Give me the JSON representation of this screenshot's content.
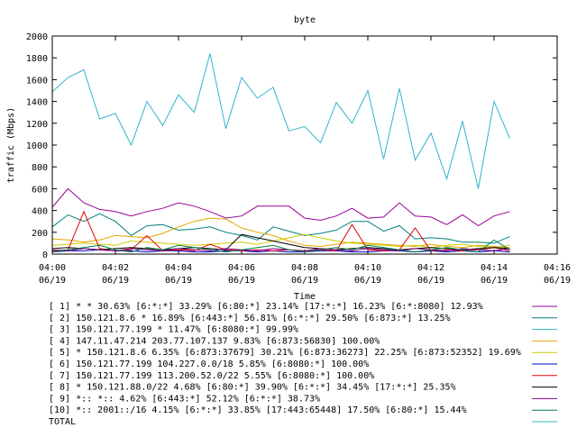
{
  "chart_data": {
    "type": "line",
    "title": "byte",
    "xlabel": "Time",
    "ylabel": "traffic (Mbps)",
    "ylim": [
      0,
      2000
    ],
    "yticks": [
      0,
      200,
      400,
      600,
      800,
      1000,
      1200,
      1400,
      1600,
      1800,
      2000
    ],
    "xlim": [
      "04:00",
      "04:16"
    ],
    "xticks": [
      {
        "time": "04:00",
        "date": "06/19"
      },
      {
        "time": "04:02",
        "date": "06/19"
      },
      {
        "time": "04:04",
        "date": "06/19"
      },
      {
        "time": "04:06",
        "date": "06/19"
      },
      {
        "time": "04:08",
        "date": "06/19"
      },
      {
        "time": "04:10",
        "date": "06/19"
      },
      {
        "time": "04:12",
        "date": "06/19"
      },
      {
        "time": "04:14",
        "date": "06/19"
      },
      {
        "time": "04:16",
        "date": "06/19"
      }
    ],
    "grid": false,
    "legend_position": "bottom",
    "x_minutes": [
      0,
      0.5,
      1,
      1.5,
      2,
      2.5,
      3,
      3.5,
      4,
      4.5,
      5,
      5.5,
      6,
      6.5,
      7,
      7.5,
      8,
      8.5,
      9,
      9.5,
      10,
      10.5,
      11,
      11.5,
      12,
      12.5,
      13,
      13.5,
      14,
      14.5
    ],
    "series": [
      {
        "name": "[ 1] * * 30.63%  [6:*:*] 33.29% [6:80:*] 23.14% [17:*:*] 16.23% [6:*:8080] 12.93%",
        "color": "#990099",
        "values": [
          430,
          600,
          470,
          410,
          390,
          350,
          390,
          420,
          470,
          440,
          390,
          330,
          350,
          440,
          440,
          440,
          330,
          310,
          350,
          420,
          330,
          340,
          470,
          350,
          340,
          270,
          360,
          260,
          350,
          390
        ]
      },
      {
        "name": "[ 2] 150.121.8.6 * 16.89%  [6:443:*] 56.81% [6:*:*] 29.50% [6:873:*] 13.25%",
        "color": "#008080",
        "values": [
          250,
          360,
          300,
          370,
          300,
          170,
          260,
          270,
          220,
          230,
          250,
          200,
          170,
          130,
          250,
          210,
          170,
          190,
          220,
          300,
          300,
          210,
          260,
          140,
          150,
          140,
          110,
          110,
          100,
          160
        ]
      },
      {
        "name": "[ 3] 150.121.77.199 * 11.47%  [6:8080:*] 99.99%",
        "color": "#33b3cc",
        "values": [
          1490,
          1620,
          1690,
          1240,
          1290,
          1000,
          1400,
          1180,
          1460,
          1300,
          1840,
          1150,
          1620,
          1430,
          1530,
          1130,
          1170,
          1020,
          1390,
          1200,
          1500,
          870,
          1520,
          860,
          1110,
          690,
          1220,
          600,
          1400,
          1060
        ]
      },
      {
        "name": "[ 4] 147.11.47.214 203.77.107.137 9.83%  [6:873:56830] 100.00%",
        "color": "#e6a600",
        "values": [
          140,
          130,
          110,
          130,
          170,
          160,
          150,
          190,
          250,
          300,
          330,
          320,
          240,
          200,
          170,
          120,
          80,
          70,
          90,
          110,
          100,
          90,
          80,
          70,
          90,
          70,
          60,
          80,
          70,
          60
        ]
      },
      {
        "name": "[ 5] * 150.121.8.6 6.35%  [6:873:37679] 30.21% [6:873:36273] 22.25% [6:873:52352] 19.69%",
        "color": "#cccc00",
        "values": [
          80,
          90,
          100,
          90,
          80,
          120,
          110,
          100,
          90,
          80,
          90,
          100,
          110,
          90,
          120,
          150,
          180,
          150,
          120,
          100,
          90,
          80,
          70,
          80,
          60,
          80,
          90,
          70,
          60,
          80
        ]
      },
      {
        "name": "[ 6] 150.121.77.199 104.227.0.0/18 5.85%  [6:8080:*] 100.00%",
        "color": "#0000cc",
        "values": [
          20,
          30,
          30,
          40,
          30,
          30,
          20,
          30,
          30,
          20,
          20,
          30,
          30,
          20,
          30,
          20,
          20,
          30,
          30,
          20,
          20,
          30,
          30,
          20,
          30,
          20,
          30,
          20,
          30,
          20
        ]
      },
      {
        "name": "[ 7] 150.121.77.199 113.200.52.0/22 5.55%  [6:8080:*] 100.00%",
        "color": "#e60000",
        "values": [
          30,
          40,
          390,
          50,
          30,
          40,
          170,
          30,
          40,
          30,
          90,
          40,
          30,
          40,
          30,
          40,
          30,
          40,
          30,
          270,
          40,
          30,
          40,
          240,
          30,
          40,
          30,
          40,
          60,
          30
        ]
      },
      {
        "name": "[ 8] * 150.121.88.0/22 4.68%  [6:80:*] 39.90% [6:*:*] 34.45% [17:*:*] 25.35%",
        "color": "#000000",
        "values": [
          50,
          60,
          50,
          40,
          50,
          60,
          50,
          40,
          50,
          60,
          50,
          40,
          180,
          150,
          120,
          90,
          60,
          50,
          40,
          50,
          60,
          50,
          40,
          50,
          60,
          50,
          40,
          50,
          60,
          50
        ]
      },
      {
        "name": "[ 9] *:: *:: 4.62%  [6:443:*] 52.12% [6:*:*] 38.73%",
        "color": "#800080",
        "values": [
          40,
          30,
          50,
          40,
          30,
          50,
          40,
          30,
          50,
          40,
          30,
          50,
          40,
          30,
          50,
          40,
          30,
          50,
          40,
          30,
          50,
          40,
          30,
          50,
          40,
          30,
          50,
          40,
          30,
          50
        ]
      },
      {
        "name": "[10] *:: 2001::/16 4.15%  [6:*:*] 33.85% [17:443:65448] 17.50% [6:80:*] 15.44%",
        "color": "#00804d",
        "values": [
          20,
          40,
          60,
          80,
          40,
          20,
          60,
          40,
          80,
          60,
          40,
          20,
          40,
          60,
          80,
          40,
          20,
          40,
          60,
          40,
          80,
          60,
          40,
          20,
          40,
          60,
          40,
          20,
          130,
          40
        ]
      },
      {
        "name": "TOTAL",
        "color": "#33b3cc",
        "values": []
      }
    ]
  }
}
